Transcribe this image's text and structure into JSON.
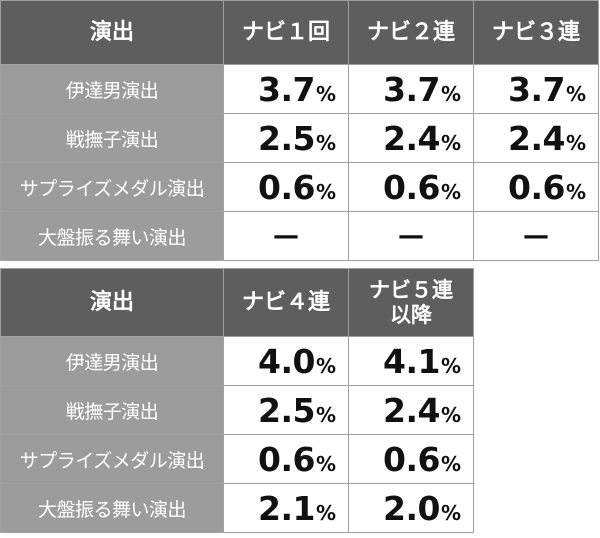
{
  "table1": {
    "headers": [
      "演出",
      "ナビ１回",
      "ナビ２連",
      "ナビ３連"
    ],
    "rows": [
      {
        "label": "伊達男演出",
        "values": [
          "3.7",
          "3.7",
          "3.7"
        ]
      },
      {
        "label": "戦撫子演出",
        "values": [
          "2.5",
          "2.4",
          "2.4"
        ]
      },
      {
        "label": "サプライズメダル演出",
        "values": [
          "0.6",
          "0.6",
          "0.6"
        ]
      },
      {
        "label": "大盤振る舞い演出",
        "values": [
          "—",
          "—",
          "—"
        ]
      }
    ]
  },
  "table2": {
    "headers": [
      "演出",
      "ナビ４連",
      "ナビ５連\n以降"
    ],
    "rows": [
      {
        "label": "伊達男演出",
        "values": [
          "4.0",
          "4.1"
        ]
      },
      {
        "label": "戦撫子演出",
        "values": [
          "2.5",
          "2.4"
        ]
      },
      {
        "label": "サプライズメダル演出",
        "values": [
          "0.6",
          "0.6"
        ]
      },
      {
        "label": "大盤振る舞い演出",
        "values": [
          "2.1",
          "2.0"
        ]
      }
    ]
  },
  "unit": "%"
}
